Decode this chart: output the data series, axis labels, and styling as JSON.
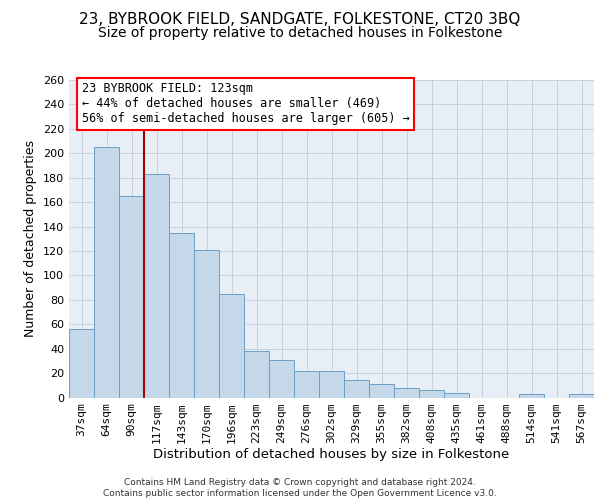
{
  "title": "23, BYBROOK FIELD, SANDGATE, FOLKESTONE, CT20 3BQ",
  "subtitle": "Size of property relative to detached houses in Folkestone",
  "xlabel": "Distribution of detached houses by size in Folkestone",
  "ylabel": "Number of detached properties",
  "categories": [
    "37sqm",
    "64sqm",
    "90sqm",
    "117sqm",
    "143sqm",
    "170sqm",
    "196sqm",
    "223sqm",
    "249sqm",
    "276sqm",
    "302sqm",
    "329sqm",
    "355sqm",
    "382sqm",
    "408sqm",
    "435sqm",
    "461sqm",
    "488sqm",
    "514sqm",
    "541sqm",
    "567sqm"
  ],
  "values": [
    56,
    205,
    165,
    183,
    135,
    121,
    85,
    38,
    31,
    22,
    22,
    14,
    11,
    8,
    6,
    4,
    0,
    0,
    3,
    0,
    3
  ],
  "bar_color": "#c5d8ea",
  "bar_edge_color": "#6b9fc4",
  "vline_x": 2.5,
  "vline_color": "#aa0000",
  "annotation_line1": "23 BYBROOK FIELD: 123sqm",
  "annotation_line2": "← 44% of detached houses are smaller (469)",
  "annotation_line3": "56% of semi-detached houses are larger (605) →",
  "ylim_max": 260,
  "ytick_step": 20,
  "grid_color": "#c8d0dc",
  "bg_color": "#e8eef6",
  "footer_line1": "Contains HM Land Registry data © Crown copyright and database right 2024.",
  "footer_line2": "Contains public sector information licensed under the Open Government Licence v3.0.",
  "title_fontsize": 11,
  "subtitle_fontsize": 10,
  "ylabel_fontsize": 9,
  "xlabel_fontsize": 9.5,
  "tick_fontsize": 8,
  "annot_fontsize": 8.5
}
